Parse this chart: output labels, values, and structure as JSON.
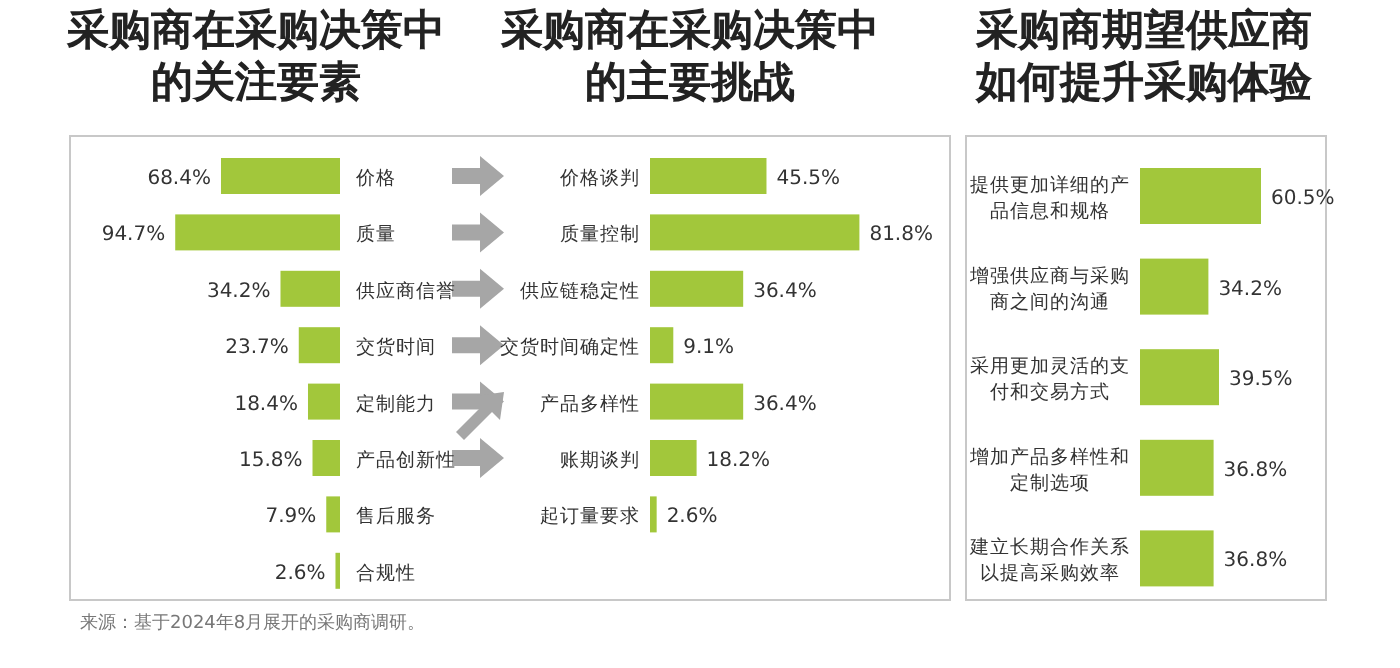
{
  "chart_data": [
    {
      "type": "bar",
      "orientation": "horizontal",
      "title": "采购商在采购决策中的关注要素",
      "categories": [
        "价格",
        "质量",
        "供应商信誉",
        "交货时间",
        "定制能力",
        "产品创新性",
        "售后服务",
        "合规性"
      ],
      "values": [
        68.4,
        94.7,
        34.2,
        23.7,
        18.4,
        15.8,
        7.9,
        2.6
      ],
      "value_labels": [
        "68.4%",
        "94.7%",
        "34.2%",
        "23.7%",
        "18.4%",
        "15.8%",
        "7.9%",
        "2.6%"
      ],
      "color": "#a2c73b",
      "annotations": [
        "来源：基于2024年8月展开的采购商调研。"
      ]
    },
    {
      "type": "bar",
      "orientation": "horizontal",
      "title": "采购商在采购决策中的主要挑战",
      "categories": [
        "价格谈判",
        "质量控制",
        "供应链稳定性",
        "交货时间确定性",
        "产品多样性",
        "账期谈判",
        "起订量要求"
      ],
      "values": [
        45.5,
        81.8,
        36.4,
        9.1,
        36.4,
        18.2,
        2.6
      ],
      "value_labels": [
        "45.5%",
        "81.8%",
        "36.4%",
        "9.1%",
        "36.4%",
        "18.2%",
        "2.6%"
      ],
      "color": "#a2c73b"
    },
    {
      "type": "bar",
      "orientation": "horizontal",
      "title": "采购商期望供应商如何提升采购体验",
      "categories": [
        "提供更加详细的产品信息和规格",
        "增强供应商与采购商之间的沟通",
        "采用更加灵活的支付和交易方式",
        "增加产品多样性和定制选项",
        "建立长期合作关系以提高采购效率"
      ],
      "values": [
        60.5,
        34.2,
        39.5,
        36.8,
        36.8
      ],
      "value_labels": [
        "60.5%",
        "34.2%",
        "39.5%",
        "36.8%",
        "36.8%"
      ],
      "color": "#a2c73b"
    }
  ]
}
